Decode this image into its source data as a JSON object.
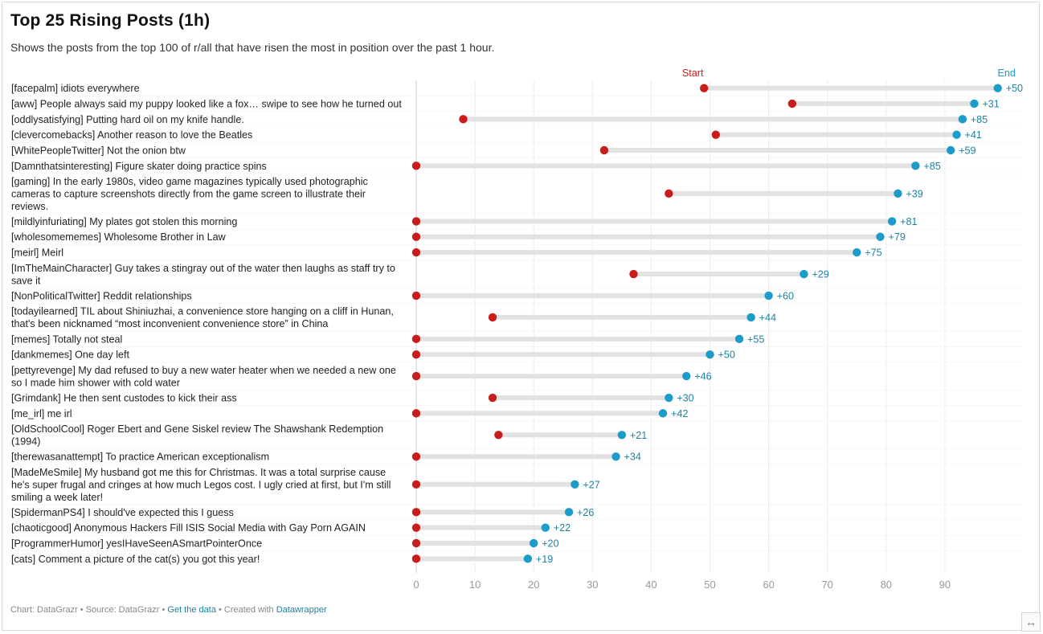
{
  "title": "Top 25 Rising Posts (1h)",
  "subtitle": "Shows the posts from the top 100 of r/all that have risen the most in position over the past 1 hour.",
  "footer": {
    "chart_label": "Chart: DataGrazr",
    "sep1": " • ",
    "source_label": "Source: DataGrazr",
    "sep2": " • ",
    "get_data": "Get the data",
    "sep3": " • ",
    "created_with": "Created with ",
    "datawrapper": "Datawrapper"
  },
  "resize_icon": "↔",
  "colors": {
    "start": "#c71e1d",
    "end": "#1d9bc9",
    "bar": "#e2e2e2",
    "end_label": "#1d81a2",
    "start_label": "#c71e1d"
  },
  "chart_data": {
    "type": "dot-range",
    "legend": {
      "start": "Start",
      "end": "End"
    },
    "xlim": [
      0,
      100
    ],
    "x_ticks": [
      0,
      10,
      20,
      30,
      40,
      50,
      60,
      70,
      80,
      90
    ],
    "rows": [
      {
        "lines": [
          "[facepalm] idiots everywhere"
        ],
        "start": 49,
        "end": 99,
        "change": "+50"
      },
      {
        "lines": [
          "[aww] People always said my puppy looked like a fox… swipe to see how he turned out"
        ],
        "start": 64,
        "end": 95,
        "change": "+31"
      },
      {
        "lines": [
          "[oddlysatisfying] Putting hard oil on my knife handle."
        ],
        "start": 8,
        "end": 93,
        "change": "+85"
      },
      {
        "lines": [
          "[clevercomebacks] Another reason to love the Beatles"
        ],
        "start": 51,
        "end": 92,
        "change": "+41"
      },
      {
        "lines": [
          "[WhitePeopleTwitter] Not the onion btw"
        ],
        "start": 32,
        "end": 91,
        "change": "+59"
      },
      {
        "lines": [
          "[Damnthatsinteresting] Figure skater doing practice spins"
        ],
        "start": 0,
        "end": 85,
        "change": "+85"
      },
      {
        "lines": [
          "[gaming] In the early 1980s, video game magazines typically used photographic",
          "cameras to capture screenshots directly from the game screen to illustrate their",
          "reviews."
        ],
        "start": 43,
        "end": 82,
        "change": "+39"
      },
      {
        "lines": [
          "[mildlyinfuriating] My plates got stolen this morning"
        ],
        "start": 0,
        "end": 81,
        "change": "+81"
      },
      {
        "lines": [
          "[wholesomememes] Wholesome Brother in Law"
        ],
        "start": 0,
        "end": 79,
        "change": "+79"
      },
      {
        "lines": [
          "[meirl] Meirl"
        ],
        "start": 0,
        "end": 75,
        "change": "+75"
      },
      {
        "lines": [
          "[ImTheMainCharacter] Guy takes a stingray out of the water then laughs as staff try to",
          "save it"
        ],
        "start": 37,
        "end": 66,
        "change": "+29"
      },
      {
        "lines": [
          "[NonPoliticalTwitter] Reddit relationships"
        ],
        "start": 0,
        "end": 60,
        "change": "+60"
      },
      {
        "lines": [
          "[todayilearned] TIL about Shiniuzhai, a convenience store hanging on a cliff in Hunan,",
          "that's been nicknamed “most inconvenient convenience store” in China"
        ],
        "start": 13,
        "end": 57,
        "change": "+44"
      },
      {
        "lines": [
          "[memes] Totally not steal"
        ],
        "start": 0,
        "end": 55,
        "change": "+55"
      },
      {
        "lines": [
          "[dankmemes] One day left"
        ],
        "start": 0,
        "end": 50,
        "change": "+50"
      },
      {
        "lines": [
          "[pettyrevenge] My dad refused to buy a new water heater when we needed a new one",
          "so I made him shower with cold water"
        ],
        "start": 0,
        "end": 46,
        "change": "+46"
      },
      {
        "lines": [
          "[Grimdank] He then sent custodes to kick their ass"
        ],
        "start": 13,
        "end": 43,
        "change": "+30"
      },
      {
        "lines": [
          "[me_irl] me irl"
        ],
        "start": 0,
        "end": 42,
        "change": "+42"
      },
      {
        "lines": [
          "[OldSchoolCool] Roger Ebert and Gene Siskel review The Shawshank Redemption",
          "(1994)"
        ],
        "start": 14,
        "end": 35,
        "change": "+21"
      },
      {
        "lines": [
          "[therewasanattempt] To practice American exceptionalism"
        ],
        "start": 0,
        "end": 34,
        "change": "+34"
      },
      {
        "lines": [
          "[MadeMeSmile] My husband got me this for Christmas. It was a total surprise cause",
          "he's super frugal and cringes at how much Legos cost. I ugly cried at first, but I'm still",
          "smiling a week later!"
        ],
        "start": 0,
        "end": 27,
        "change": "+27"
      },
      {
        "lines": [
          "[SpidermanPS4] I should've expected this I guess"
        ],
        "start": 0,
        "end": 26,
        "change": "+26"
      },
      {
        "lines": [
          "[chaoticgood] Anonymous Hackers Fill ISIS Social Media with Gay Porn AGAIN"
        ],
        "start": 0,
        "end": 22,
        "change": "+22"
      },
      {
        "lines": [
          "[ProgrammerHumor] yesIHaveSeenASmartPointerOnce"
        ],
        "start": 0,
        "end": 20,
        "change": "+20"
      },
      {
        "lines": [
          "[cats] Comment a picture of the cat(s) you got this year!"
        ],
        "start": 0,
        "end": 19,
        "change": "+19"
      }
    ]
  }
}
